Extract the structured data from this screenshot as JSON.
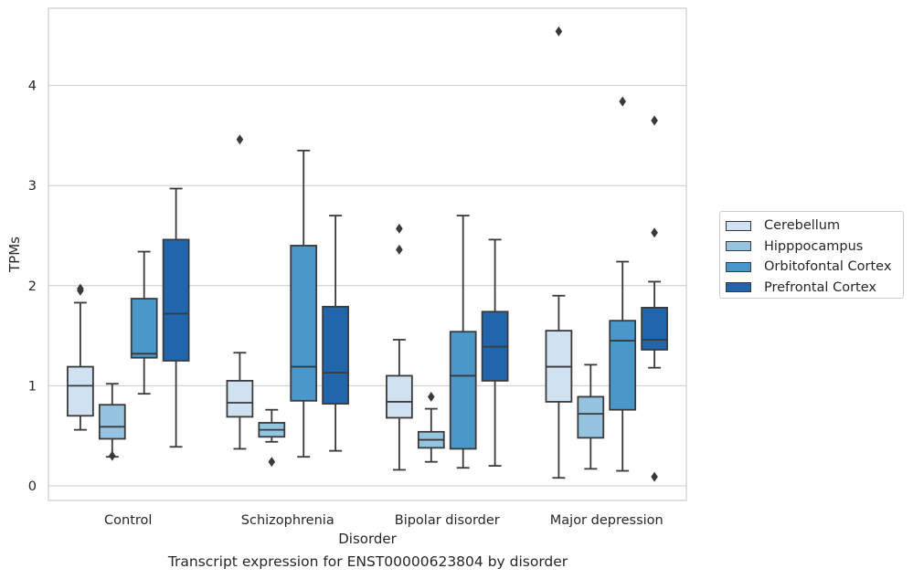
{
  "caption": "Transcript expression for ENST00000623804 by disorder",
  "chart_data": {
    "type": "box",
    "title": "",
    "xlabel": "Disorder",
    "ylabel": "TPMs",
    "ylim": [
      -0.14,
      4.75
    ],
    "yticks": [
      0,
      1,
      2,
      3,
      4
    ],
    "grid": "horizontal",
    "legend_position": "right",
    "categories": [
      "Control",
      "Schizophrenia",
      "Bipolar disorder",
      "Major depression"
    ],
    "series": [
      {
        "name": "Cerebellum",
        "color": "#d0e1f2",
        "boxes": [
          {
            "whislo": 0.56,
            "q1": 0.7,
            "med": 1.0,
            "q3": 1.19,
            "whishi": 1.83,
            "fliers": [
              1.95,
              1.97
            ]
          },
          {
            "whislo": 0.37,
            "q1": 0.69,
            "med": 0.83,
            "q3": 1.05,
            "whishi": 1.33,
            "fliers": [
              3.46
            ]
          },
          {
            "whislo": 0.16,
            "q1": 0.68,
            "med": 0.84,
            "q3": 1.1,
            "whishi": 1.46,
            "fliers": [
              2.36,
              2.57
            ]
          },
          {
            "whislo": 0.08,
            "q1": 0.84,
            "med": 1.19,
            "q3": 1.55,
            "whishi": 1.9,
            "fliers": [
              4.54
            ]
          }
        ]
      },
      {
        "name": "Hipppocampus",
        "color": "#94c4df",
        "boxes": [
          {
            "whislo": 0.29,
            "q1": 0.47,
            "med": 0.59,
            "q3": 0.81,
            "whishi": 1.02,
            "fliers": [
              0.3
            ]
          },
          {
            "whislo": 0.44,
            "q1": 0.49,
            "med": 0.56,
            "q3": 0.63,
            "whishi": 0.76,
            "fliers": [
              0.24
            ]
          },
          {
            "whislo": 0.24,
            "q1": 0.38,
            "med": 0.46,
            "q3": 0.54,
            "whishi": 0.77,
            "fliers": [
              0.89
            ]
          },
          {
            "whislo": 0.17,
            "q1": 0.48,
            "med": 0.72,
            "q3": 0.89,
            "whishi": 1.21,
            "fliers": []
          }
        ]
      },
      {
        "name": "Orbitofontal Cortex",
        "color": "#4a98c9",
        "boxes": [
          {
            "whislo": 0.92,
            "q1": 1.28,
            "med": 1.32,
            "q3": 1.87,
            "whishi": 2.34,
            "fliers": []
          },
          {
            "whislo": 0.29,
            "q1": 0.85,
            "med": 1.19,
            "q3": 2.4,
            "whishi": 3.35,
            "fliers": []
          },
          {
            "whislo": 0.18,
            "q1": 0.37,
            "med": 1.1,
            "q3": 1.54,
            "whishi": 2.7,
            "fliers": []
          },
          {
            "whislo": 0.15,
            "q1": 0.76,
            "med": 1.45,
            "q3": 1.65,
            "whishi": 2.24,
            "fliers": [
              3.84
            ]
          }
        ]
      },
      {
        "name": "Prefrontal Cortex",
        "color": "#2166ac",
        "boxes": [
          {
            "whislo": 0.39,
            "q1": 1.25,
            "med": 1.72,
            "q3": 2.46,
            "whishi": 2.97,
            "fliers": []
          },
          {
            "whislo": 0.35,
            "q1": 0.82,
            "med": 1.13,
            "q3": 1.79,
            "whishi": 2.7,
            "fliers": []
          },
          {
            "whislo": 0.2,
            "q1": 1.05,
            "med": 1.39,
            "q3": 1.74,
            "whishi": 2.46,
            "fliers": []
          },
          {
            "whislo": 1.18,
            "q1": 1.36,
            "med": 1.46,
            "q3": 1.78,
            "whishi": 2.04,
            "fliers": [
              0.09,
              2.53,
              3.65
            ]
          }
        ]
      }
    ]
  }
}
